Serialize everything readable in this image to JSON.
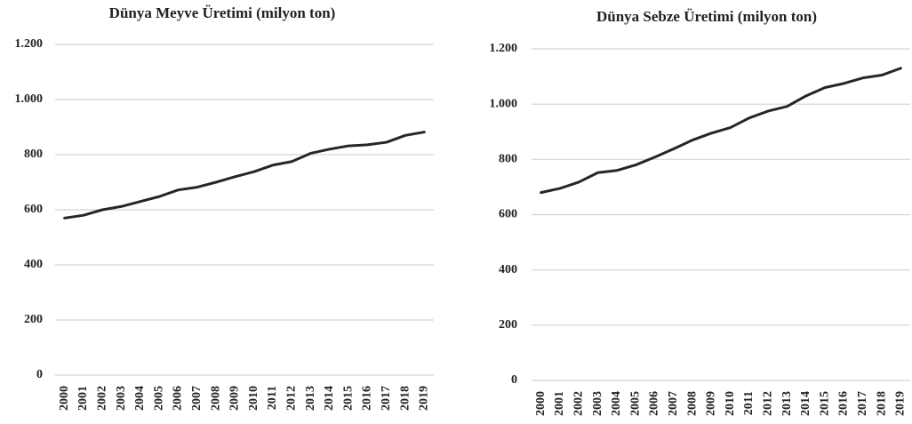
{
  "chart_data": [
    {
      "type": "line",
      "title": "Dünya Meyve Üretimi (milyon ton)",
      "categories": [
        "2000",
        "2001",
        "2002",
        "2003",
        "2004",
        "2005",
        "2006",
        "2007",
        "2008",
        "2009",
        "2010",
        "2011",
        "2012",
        "2013",
        "2014",
        "2015",
        "2016",
        "2017",
        "2018",
        "2019"
      ],
      "series": [
        {
          "name": null,
          "color": "#262626",
          "values": [
            570,
            580,
            600,
            612,
            630,
            648,
            672,
            682,
            700,
            720,
            738,
            762,
            775,
            805,
            820,
            832,
            836,
            845,
            870,
            882
          ]
        }
      ],
      "ylim": [
        0,
        1200
      ],
      "yticks": [
        0,
        200,
        400,
        600,
        800,
        {
          "value": 1000,
          "label": "1.000"
        },
        {
          "value": 1200,
          "label": "1.200"
        }
      ],
      "grid": true
    },
    {
      "type": "line",
      "title": "Dünya Sebze Üretimi (milyon ton)",
      "categories": [
        "2000",
        "2001",
        "2002",
        "2003",
        "2004",
        "2005",
        "2006",
        "2007",
        "2008",
        "2009",
        "2010",
        "2011",
        "2012",
        "2013",
        "2014",
        "2015",
        "2016",
        "2017",
        "2018",
        "2019"
      ],
      "series": [
        {
          "name": null,
          "color": "#262626",
          "values": [
            680,
            695,
            718,
            752,
            760,
            780,
            808,
            838,
            870,
            895,
            915,
            950,
            975,
            992,
            1030,
            1060,
            1075,
            1095,
            1105,
            1130
          ]
        }
      ],
      "ylim": [
        0,
        1200
      ],
      "yticks": [
        0,
        200,
        400,
        600,
        800,
        {
          "value": 1000,
          "label": "1.000"
        },
        {
          "value": 1200,
          "label": "1.200"
        }
      ],
      "grid": true
    }
  ]
}
